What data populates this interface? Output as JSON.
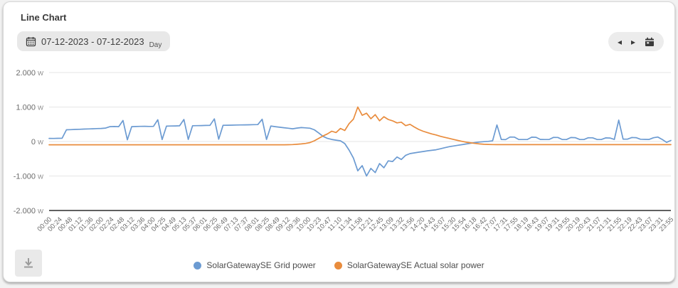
{
  "header": {
    "title": "Line Chart"
  },
  "toolbar": {
    "date_range": "07-12-2023 - 07-12-2023",
    "period": "Day",
    "icons": {
      "date_picker": "calendar-icon",
      "prev": "chevron-left-icon",
      "prev_glyph": "◂",
      "next": "chevron-right-icon",
      "next_glyph": "▸",
      "jump_to_date": "calendar-icon",
      "download": "download-icon"
    }
  },
  "colors": {
    "grid_power_blue": "#6c9bd2",
    "solar_orange": "#e98c3d",
    "grid_line": "#e6e6e6",
    "axis_line": "#4a4a4a",
    "tick_text": "#6b6b6b"
  },
  "chart_data": {
    "type": "line",
    "title": "Line Chart",
    "unit": "W",
    "ylim": [
      -2000,
      2000
    ],
    "grid": true,
    "legend_position": "bottom",
    "x_interval_minutes": 10,
    "yticks": [
      {
        "value": 2000,
        "label": "2.000"
      },
      {
        "value": 1000,
        "label": "1.000"
      },
      {
        "value": 0,
        "label": "0"
      },
      {
        "value": -1000,
        "label": "-1.000"
      },
      {
        "value": -2000,
        "label": "-2.000"
      }
    ],
    "x_labels": [
      "00:00",
      "00:24",
      "00:48",
      "01:12",
      "01:36",
      "02:00",
      "02:24",
      "02:48",
      "03:12",
      "03:36",
      "04:00",
      "04:25",
      "04:49",
      "05:13",
      "05:37",
      "06:01",
      "06:25",
      "06:49",
      "07:13",
      "07:37",
      "08:01",
      "08:25",
      "08:49",
      "09:12",
      "09:36",
      "10:00",
      "10:23",
      "10:47",
      "11:10",
      "11:34",
      "11:58",
      "12:21",
      "12:45",
      "13:09",
      "13:32",
      "13:56",
      "14:20",
      "14:43",
      "15:07",
      "15:30",
      "15:54",
      "16:18",
      "16:42",
      "17:07",
      "17:31",
      "17:55",
      "18:19",
      "18:43",
      "19:07",
      "19:31",
      "19:55",
      "20:19",
      "20:43",
      "21:07",
      "21:31",
      "21:55",
      "22:19",
      "22:43",
      "23:07",
      "23:31",
      "23:55"
    ],
    "series": [
      {
        "name": "SolarGatewaySE Grid power",
        "color": "#6c9bd2",
        "values": [
          90,
          88,
          92,
          95,
          340,
          345,
          350,
          355,
          360,
          365,
          370,
          375,
          380,
          390,
          430,
          435,
          430,
          610,
          50,
          430,
          435,
          440,
          442,
          438,
          440,
          630,
          55,
          445,
          450,
          452,
          455,
          640,
          60,
          458,
          460,
          462,
          465,
          468,
          655,
          65,
          470,
          472,
          475,
          478,
          480,
          482,
          485,
          488,
          490,
          645,
          60,
          450,
          430,
          415,
          400,
          385,
          370,
          390,
          405,
          395,
          385,
          340,
          250,
          150,
          90,
          60,
          40,
          20,
          -60,
          -250,
          -480,
          -850,
          -700,
          -1000,
          -780,
          -900,
          -640,
          -760,
          -560,
          -580,
          -450,
          -520,
          -400,
          -350,
          -330,
          -310,
          -290,
          -270,
          -255,
          -240,
          -210,
          -180,
          -150,
          -130,
          -110,
          -90,
          -70,
          -50,
          -30,
          -15,
          -5,
          5,
          20,
          480,
          60,
          55,
          130,
          128,
          60,
          58,
          60,
          125,
          122,
          60,
          58,
          60,
          120,
          118,
          60,
          58,
          115,
          112,
          60,
          58,
          110,
          108,
          60,
          58,
          105,
          102,
          60,
          620,
          70,
          68,
          115,
          112,
          65,
          62,
          60,
          110,
          130,
          60,
          -25,
          30
        ]
      },
      {
        "name": "SolarGatewaySE Actual solar power",
        "color": "#e98c3d",
        "values": [
          -95,
          -95,
          -95,
          -95,
          -95,
          -95,
          -95,
          -95,
          -95,
          -95,
          -95,
          -95,
          -95,
          -95,
          -95,
          -95,
          -95,
          -95,
          -95,
          -95,
          -95,
          -95,
          -95,
          -95,
          -95,
          -95,
          -95,
          -95,
          -95,
          -95,
          -95,
          -95,
          -95,
          -95,
          -95,
          -95,
          -95,
          -95,
          -95,
          -95,
          -95,
          -95,
          -95,
          -95,
          -95,
          -95,
          -95,
          -95,
          -95,
          -95,
          -95,
          -95,
          -95,
          -95,
          -95,
          -92,
          -88,
          -80,
          -70,
          -55,
          -30,
          20,
          90,
          160,
          220,
          300,
          260,
          380,
          320,
          520,
          650,
          1000,
          760,
          820,
          660,
          780,
          600,
          720,
          640,
          600,
          540,
          560,
          460,
          500,
          420,
          350,
          300,
          260,
          220,
          190,
          150,
          120,
          90,
          60,
          30,
          5,
          -20,
          -40,
          -55,
          -70,
          -80,
          -85,
          -88,
          -90,
          -90,
          -90,
          -90,
          -90,
          -90,
          -90,
          -90,
          -90,
          -90,
          -90,
          -90,
          -90,
          -90,
          -90,
          -90,
          -90,
          -90,
          -90,
          -90,
          -90,
          -90,
          -90,
          -90,
          -90,
          -90,
          -90,
          -90,
          -90,
          -90,
          -90,
          -90,
          -90,
          -90,
          -90,
          -90,
          -90,
          -90,
          -90,
          -90,
          -90
        ]
      }
    ]
  }
}
